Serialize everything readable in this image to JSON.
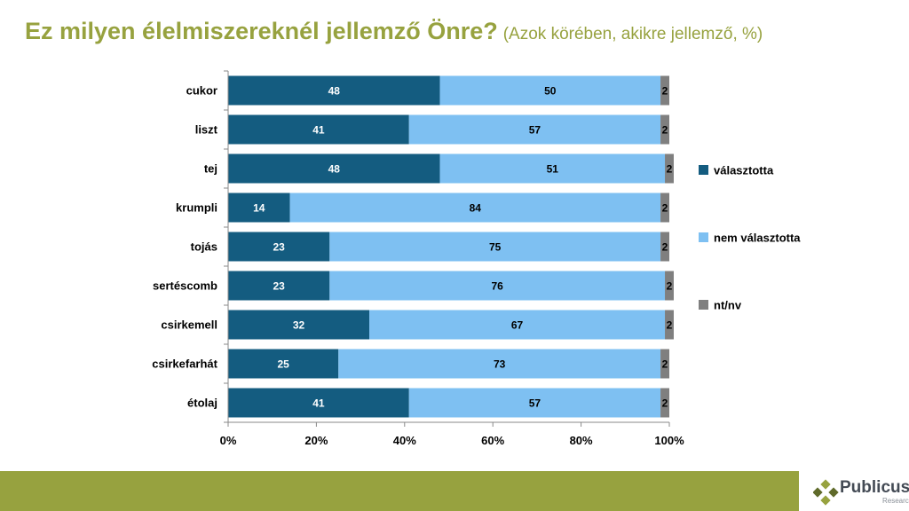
{
  "title": {
    "main": "Ez milyen élelmiszereknél jellemző Önre?",
    "sub": "(Azok körében, akikre jellemző, %)"
  },
  "colors": {
    "title": "#97a23f",
    "footer": "#97a23f",
    "dark_blue": "#145c80",
    "light_blue": "#7ec0f2",
    "gray": "#7f7f7f"
  },
  "chart_data": {
    "type": "bar",
    "orientation": "horizontal",
    "stacked": "percent",
    "categories": [
      "cukor",
      "liszt",
      "tej",
      "krumpli",
      "tojás",
      "sertéscomb",
      "csirkemell",
      "csirkefarhát",
      "étolaj"
    ],
    "series": [
      {
        "name": "választotta",
        "color": "#145c80",
        "values": [
          48,
          41,
          48,
          14,
          23,
          23,
          32,
          25,
          41
        ]
      },
      {
        "name": "nem választotta",
        "color": "#7ec0f2",
        "values": [
          50,
          57,
          51,
          84,
          75,
          76,
          67,
          73,
          57
        ]
      },
      {
        "name": "nt/nv",
        "color": "#7f7f7f",
        "values": [
          2,
          2,
          2,
          2,
          2,
          2,
          2,
          2,
          2
        ]
      }
    ],
    "xticks": [
      "0%",
      "20%",
      "40%",
      "60%",
      "80%",
      "100%"
    ],
    "xlim": [
      0,
      100
    ],
    "legend_position": "right",
    "grid": false
  },
  "logo": {
    "name": "Publicus",
    "tagline": "Research"
  }
}
